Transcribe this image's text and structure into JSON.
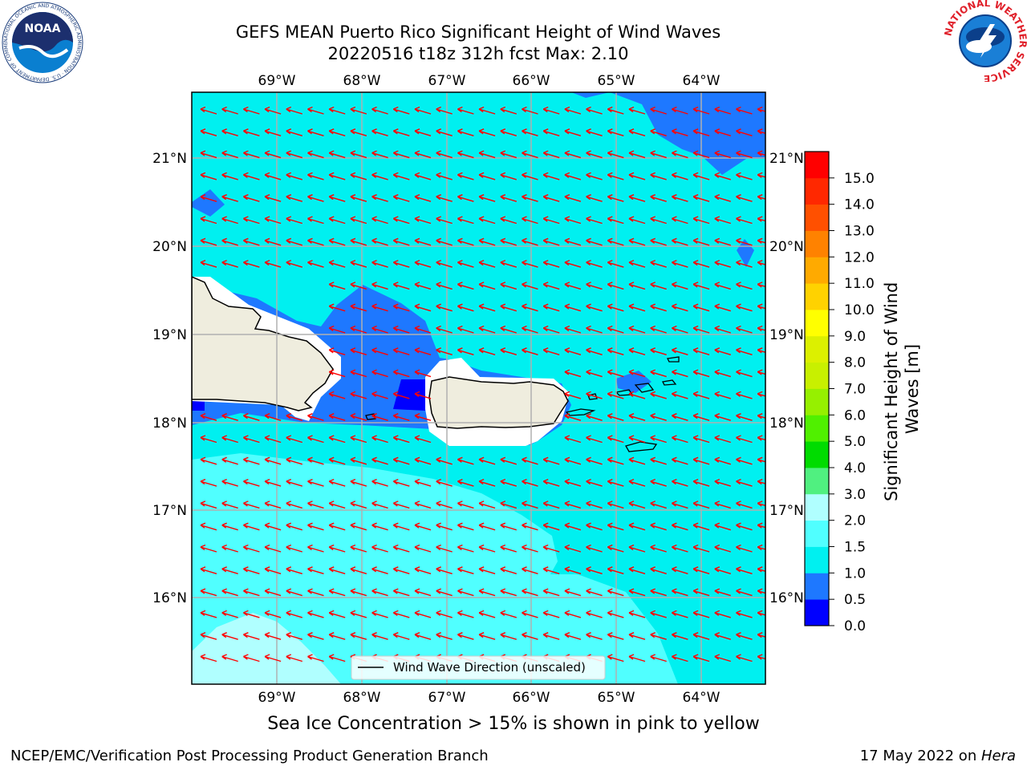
{
  "header": {
    "title_line1": "GEFS MEAN Puerto Rico Significant Height of Wind Waves",
    "title_line2": "20220516 t18z 312h fcst   Max: 2.10"
  },
  "logos": {
    "noaa_text": "NOAA",
    "noaa_ring": "NATIONAL OCEANIC AND ATMOSPHERIC ADMINISTRATION · U.S. DEPARTMENT OF COMMERCE",
    "nws_ring": "NATIONAL WEATHER SERVICE"
  },
  "map": {
    "lon_ticks": [
      "69°W",
      "68°W",
      "67°W",
      "66°W",
      "65°W",
      "64°W"
    ],
    "lat_ticks": [
      "21°N",
      "20°N",
      "19°N",
      "18°N",
      "17°N",
      "16°N"
    ],
    "legend_label": "Wind Wave Direction (unscaled)",
    "arrow_color": "#ff0000",
    "land_color": "#efedde"
  },
  "colorbar": {
    "label": "Significant Height of Wind Waves [m]",
    "ticks": [
      "0.0",
      "0.5",
      "1.0",
      "1.5",
      "2.0",
      "3.0",
      "4.0",
      "5.0",
      "6.0",
      "7.0",
      "8.0",
      "9.0",
      "10.0",
      "11.0",
      "12.0",
      "13.0",
      "14.0",
      "15.0"
    ],
    "colors": [
      "#0000ff",
      "#1e78ff",
      "#00f0f0",
      "#50ffff",
      "#b0ffff",
      "#50f080",
      "#00dc00",
      "#50f000",
      "#96f000",
      "#c8f000",
      "#dcf000",
      "#ffff00",
      "#ffd200",
      "#ffaa00",
      "#ff8200",
      "#ff5000",
      "#ff2800",
      "#ff0000"
    ]
  },
  "footer": {
    "sea_ice_note": "Sea Ice Concentration > 15% is shown in pink to yellow",
    "producer": "NCEP/EMC/Verification Post Processing Product Generation Branch",
    "date_text": "17 May 2022 on ",
    "machine": "Hera"
  }
}
